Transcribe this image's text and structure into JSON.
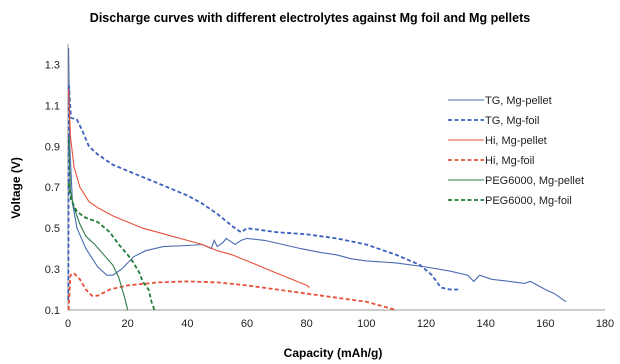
{
  "chart_data": {
    "type": "line",
    "title": "Discharge curves with different electrolytes against Mg foil and Mg pellets",
    "xlabel": "Capacity (mAh/g)",
    "ylabel": "Voltage (V)",
    "xlim": [
      0,
      180
    ],
    "ylim": [
      0.1,
      1.4
    ],
    "x_ticks": [
      0,
      20,
      40,
      60,
      80,
      100,
      120,
      140,
      160,
      180
    ],
    "y_ticks": [
      0.1,
      0.3,
      0.5,
      0.7,
      0.9,
      1.1,
      1.3
    ],
    "grid": false,
    "legend_position": "right",
    "series": [
      {
        "name": "TG, Mg-pellet",
        "color": "#4a6bb0",
        "dash": "solid",
        "points": [
          [
            0.2,
            1.38
          ],
          [
            0.6,
            0.9
          ],
          [
            1.5,
            0.62
          ],
          [
            3,
            0.5
          ],
          [
            6,
            0.4
          ],
          [
            10,
            0.31
          ],
          [
            13,
            0.27
          ],
          [
            15,
            0.27
          ],
          [
            18,
            0.3
          ],
          [
            22,
            0.36
          ],
          [
            26,
            0.39
          ],
          [
            32,
            0.41
          ],
          [
            40,
            0.415
          ],
          [
            45,
            0.42
          ],
          [
            48,
            0.4
          ],
          [
            49,
            0.44
          ],
          [
            50,
            0.41
          ],
          [
            52,
            0.43
          ],
          [
            53,
            0.45
          ],
          [
            56,
            0.42
          ],
          [
            58,
            0.44
          ],
          [
            60,
            0.45
          ],
          [
            66,
            0.44
          ],
          [
            72,
            0.42
          ],
          [
            78,
            0.4
          ],
          [
            85,
            0.38
          ],
          [
            90,
            0.37
          ],
          [
            95,
            0.35
          ],
          [
            100,
            0.34
          ],
          [
            110,
            0.33
          ],
          [
            120,
            0.31
          ],
          [
            128,
            0.29
          ],
          [
            134,
            0.27
          ],
          [
            136,
            0.24
          ],
          [
            138,
            0.27
          ],
          [
            142,
            0.25
          ],
          [
            148,
            0.24
          ],
          [
            153,
            0.23
          ],
          [
            155,
            0.24
          ],
          [
            160,
            0.2
          ],
          [
            163,
            0.18
          ],
          [
            166,
            0.15
          ],
          [
            167,
            0.14
          ]
        ]
      },
      {
        "name": "TG, Mg-foil",
        "color": "#3a5fbf",
        "dash": "dashed",
        "points": [
          [
            0.1,
            0.15
          ],
          [
            0.3,
            1.2
          ],
          [
            1,
            1.04
          ],
          [
            3,
            1.03
          ],
          [
            5,
            0.97
          ],
          [
            7,
            0.9
          ],
          [
            10,
            0.86
          ],
          [
            15,
            0.81
          ],
          [
            20,
            0.78
          ],
          [
            25,
            0.75
          ],
          [
            30,
            0.72
          ],
          [
            35,
            0.69
          ],
          [
            40,
            0.66
          ],
          [
            45,
            0.62
          ],
          [
            50,
            0.57
          ],
          [
            55,
            0.51
          ],
          [
            58,
            0.48
          ],
          [
            60,
            0.5
          ],
          [
            65,
            0.49
          ],
          [
            70,
            0.48
          ],
          [
            80,
            0.47
          ],
          [
            90,
            0.45
          ],
          [
            100,
            0.42
          ],
          [
            110,
            0.37
          ],
          [
            118,
            0.32
          ],
          [
            122,
            0.27
          ],
          [
            125,
            0.21
          ],
          [
            128,
            0.2
          ],
          [
            131,
            0.2
          ]
        ]
      },
      {
        "name": "Hi, Mg-pellet",
        "color": "#e8503a",
        "dash": "solid",
        "points": [
          [
            0.2,
            1.18
          ],
          [
            0.8,
            0.95
          ],
          [
            2,
            0.8
          ],
          [
            4,
            0.7
          ],
          [
            7,
            0.63
          ],
          [
            10,
            0.6
          ],
          [
            15,
            0.56
          ],
          [
            20,
            0.53
          ],
          [
            25,
            0.5
          ],
          [
            30,
            0.48
          ],
          [
            35,
            0.46
          ],
          [
            40,
            0.44
          ],
          [
            45,
            0.42
          ],
          [
            50,
            0.39
          ],
          [
            55,
            0.37
          ],
          [
            60,
            0.34
          ],
          [
            65,
            0.31
          ],
          [
            70,
            0.28
          ],
          [
            75,
            0.25
          ],
          [
            80,
            0.22
          ],
          [
            81,
            0.21
          ]
        ]
      },
      {
        "name": "Hi, Mg-foil",
        "color": "#e8503a",
        "dash": "dashed",
        "points": [
          [
            0.2,
            0.1
          ],
          [
            0.8,
            0.27
          ],
          [
            2,
            0.28
          ],
          [
            4,
            0.25
          ],
          [
            6,
            0.2
          ],
          [
            8,
            0.17
          ],
          [
            10,
            0.17
          ],
          [
            14,
            0.2
          ],
          [
            20,
            0.22
          ],
          [
            30,
            0.235
          ],
          [
            40,
            0.24
          ],
          [
            50,
            0.235
          ],
          [
            60,
            0.22
          ],
          [
            70,
            0.2
          ],
          [
            80,
            0.18
          ],
          [
            90,
            0.16
          ],
          [
            100,
            0.14
          ],
          [
            105,
            0.12
          ],
          [
            110,
            0.1
          ]
        ]
      },
      {
        "name": "PEG6000, Mg-pellet",
        "color": "#2e7d4a",
        "dash": "solid",
        "points": [
          [
            0.2,
            0.95
          ],
          [
            0.8,
            0.68
          ],
          [
            2,
            0.6
          ],
          [
            4,
            0.52
          ],
          [
            6,
            0.46
          ],
          [
            9,
            0.42
          ],
          [
            12,
            0.37
          ],
          [
            15,
            0.32
          ],
          [
            17,
            0.26
          ],
          [
            19,
            0.16
          ],
          [
            20,
            0.1
          ]
        ]
      },
      {
        "name": "PEG6000, Mg-foil",
        "color": "#1f7a3a",
        "dash": "dashed",
        "points": [
          [
            0.2,
            0.72
          ],
          [
            1,
            0.64
          ],
          [
            3,
            0.58
          ],
          [
            6,
            0.55
          ],
          [
            10,
            0.53
          ],
          [
            14,
            0.48
          ],
          [
            17,
            0.42
          ],
          [
            20,
            0.37
          ],
          [
            22,
            0.33
          ],
          [
            24,
            0.28
          ],
          [
            25,
            0.24
          ],
          [
            27,
            0.2
          ],
          [
            28,
            0.14
          ],
          [
            29,
            0.1
          ]
        ]
      }
    ]
  }
}
